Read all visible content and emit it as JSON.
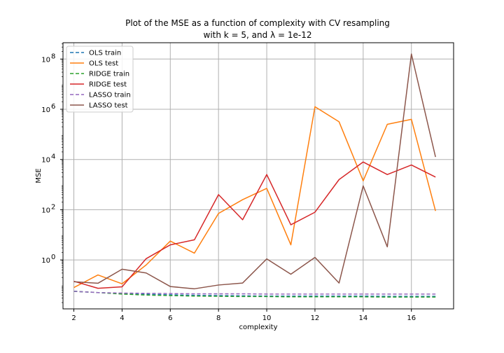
{
  "chart_data": {
    "type": "line",
    "title_line1": "Plot of the MSE as a function of complexity with CV resampling",
    "title_line2": "with k = 5, and λ = 1e-12",
    "xlabel": "complexity",
    "ylabel": "MSE",
    "yscale": "log",
    "xlim": [
      1.55,
      17.75
    ],
    "ylim_log10": [
      -1.95,
      8.65
    ],
    "xticks": [
      2,
      4,
      6,
      8,
      10,
      12,
      14,
      16
    ],
    "xtick_labels": [
      "2",
      "4",
      "6",
      "8",
      "10",
      "12",
      "14",
      "16"
    ],
    "yticks_log10": [
      0,
      2,
      4,
      6,
      8
    ],
    "ytick_labels": [
      {
        "base": "10",
        "exp": "0"
      },
      {
        "base": "10",
        "exp": "2"
      },
      {
        "base": "10",
        "exp": "4"
      },
      {
        "base": "10",
        "exp": "6"
      },
      {
        "base": "10",
        "exp": "8"
      }
    ],
    "grid": true,
    "legend_position": "upper left",
    "x": [
      2,
      3,
      4,
      5,
      6,
      7,
      8,
      9,
      10,
      11,
      12,
      13,
      14,
      15,
      16,
      17
    ],
    "series": [
      {
        "name": "OLS train",
        "color": "#1f77b4",
        "dash": true,
        "values_log10": [
          -1.25,
          -1.3,
          -1.35,
          -1.37,
          -1.39,
          -1.41,
          -1.42,
          -1.43,
          -1.44,
          -1.44,
          -1.44,
          -1.44,
          -1.44,
          -1.45,
          -1.45,
          -1.45
        ]
      },
      {
        "name": "OLS test",
        "color": "#ff7f0e",
        "dash": false,
        "values_log10": [
          -1.1,
          -0.6,
          -0.95,
          -0.2,
          0.75,
          0.27,
          1.85,
          2.4,
          2.85,
          0.6,
          6.1,
          5.5,
          3.15,
          5.4,
          5.6,
          1.95
        ]
      },
      {
        "name": "RIDGE train",
        "color": "#2ca02c",
        "dash": true,
        "values_log10": [
          -1.25,
          -1.3,
          -1.36,
          -1.4,
          -1.42,
          -1.44,
          -1.45,
          -1.46,
          -1.46,
          -1.47,
          -1.47,
          -1.47,
          -1.47,
          -1.48,
          -1.48,
          -1.48
        ]
      },
      {
        "name": "RIDGE test",
        "color": "#d62728",
        "dash": false,
        "values_log10": [
          -0.85,
          -1.13,
          -1.07,
          0.05,
          0.6,
          0.8,
          2.6,
          1.6,
          3.4,
          1.4,
          1.9,
          3.2,
          3.9,
          3.4,
          3.78,
          3.3
        ]
      },
      {
        "name": "LASSO train",
        "color": "#9467bd",
        "dash": true,
        "values_log10": [
          -1.25,
          -1.3,
          -1.32,
          -1.33,
          -1.34,
          -1.35,
          -1.35,
          -1.35,
          -1.36,
          -1.36,
          -1.36,
          -1.36,
          -1.36,
          -1.36,
          -1.36,
          -1.36
        ]
      },
      {
        "name": "LASSO test",
        "color": "#8c564b",
        "dash": false,
        "values_log10": [
          -0.87,
          -0.93,
          -0.37,
          -0.52,
          -1.06,
          -1.15,
          -1.0,
          -0.92,
          0.04,
          -0.57,
          0.1,
          -0.92,
          2.95,
          0.52,
          8.2,
          4.1
        ]
      }
    ]
  }
}
